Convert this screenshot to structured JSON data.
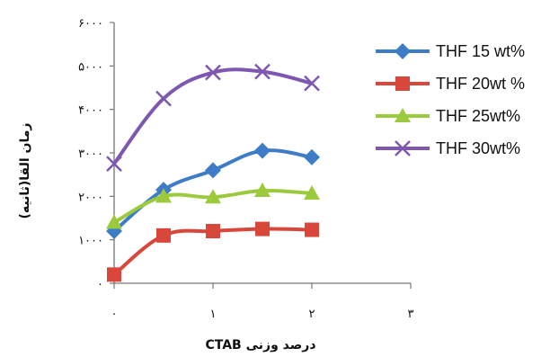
{
  "chart_data": {
    "type": "line",
    "x": [
      0,
      0.5,
      1,
      1.5,
      2
    ],
    "xlim": [
      0,
      3
    ],
    "ylim": [
      0,
      6000
    ],
    "xticks": [
      {
        "value": 0,
        "label": "٠"
      },
      {
        "value": 1,
        "label": "١"
      },
      {
        "value": 2,
        "label": "٢"
      },
      {
        "value": 3,
        "label": "٣"
      }
    ],
    "yticks": [
      {
        "value": 0,
        "label": "٠"
      },
      {
        "value": 1000,
        "label": "١٠٠٠"
      },
      {
        "value": 2000,
        "label": "٢٠٠٠"
      },
      {
        "value": 3000,
        "label": "٣٠٠٠"
      },
      {
        "value": 4000,
        "label": "۴٠٠٠"
      },
      {
        "value": 5000,
        "label": "۵٠٠٠"
      },
      {
        "value": 6000,
        "label": "۶٠٠٠"
      }
    ],
    "xlabel": "درصد وزنی CTAB",
    "ylabel": "زمان القا(ثانیه)",
    "grid": false,
    "legend_position": "right",
    "series": [
      {
        "name": "THF 15 wt%",
        "color": "#3E7CC8",
        "marker": "diamond",
        "values": [
          1200,
          2150,
          2600,
          3050,
          2900
        ]
      },
      {
        "name": "THF 20wt %",
        "color": "#D9463A",
        "marker": "square",
        "values": [
          200,
          1100,
          1200,
          1250,
          1230
        ]
      },
      {
        "name": "THF 25wt%",
        "color": "#9BCB3C",
        "marker": "triangle",
        "values": [
          1400,
          2000,
          1980,
          2130,
          2070
        ]
      },
      {
        "name": "THF 30wt%",
        "color": "#7E58B0",
        "marker": "x",
        "values": [
          2750,
          4250,
          4850,
          4870,
          4600
        ]
      }
    ]
  }
}
